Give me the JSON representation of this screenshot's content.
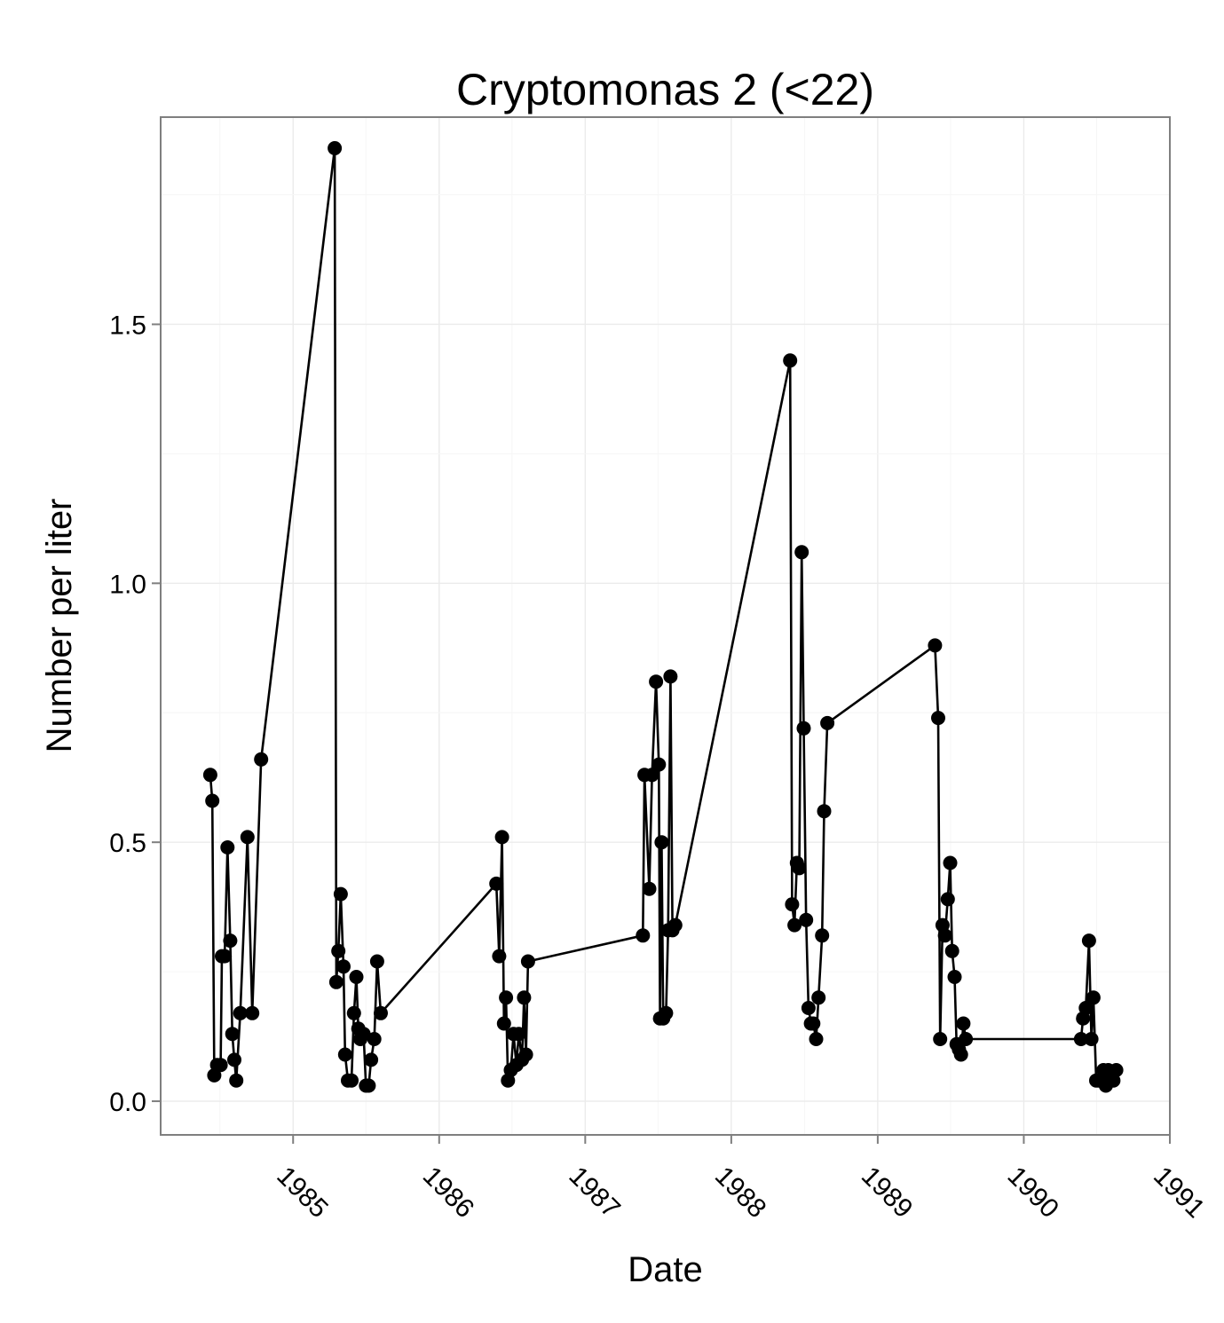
{
  "chart_data": {
    "type": "line",
    "title": "Cryptomonas 2 (<22)",
    "xlabel": "Date",
    "ylabel": "Number per liter",
    "x_ticks": [
      "1985",
      "1986",
      "1987",
      "1988",
      "1989",
      "1990",
      "1991"
    ],
    "y_ticks": [
      "0.0",
      "0.5",
      "1.0",
      "1.5"
    ],
    "xlim": [
      "1984-02-05",
      "1991-01-01"
    ],
    "ylim": [
      -0.065,
      1.9
    ],
    "grid": true,
    "marker": "circle",
    "colors": {
      "line": "#000000",
      "grid_major": "#ebebeb",
      "grid_minor": "#f6f6f6",
      "panel_border": "#7f7f7f"
    },
    "series": [
      {
        "points": [
          [
            "1984-06-08",
            0.63
          ],
          [
            "1984-06-13",
            0.58
          ],
          [
            "1984-06-18",
            0.05
          ],
          [
            "1984-06-25",
            0.07
          ],
          [
            "1984-07-04",
            0.07
          ],
          [
            "1984-07-07",
            0.28
          ],
          [
            "1984-07-14",
            0.28
          ],
          [
            "1984-07-21",
            0.49
          ],
          [
            "1984-07-28",
            0.31
          ],
          [
            "1984-08-02",
            0.13
          ],
          [
            "1984-08-07",
            0.08
          ],
          [
            "1984-08-12",
            0.04
          ],
          [
            "1984-08-22",
            0.17
          ],
          [
            "1984-09-09",
            0.51
          ],
          [
            "1984-09-21",
            0.17
          ],
          [
            "1984-10-13",
            0.66
          ],
          [
            "1985-04-15",
            1.84
          ],
          [
            "1985-04-19",
            0.23
          ],
          [
            "1985-04-24",
            0.29
          ],
          [
            "1985-04-30",
            0.4
          ],
          [
            "1985-05-07",
            0.26
          ],
          [
            "1985-05-11",
            0.09
          ],
          [
            "1985-05-18",
            0.04
          ],
          [
            "1985-05-27",
            0.04
          ],
          [
            "1985-06-02",
            0.17
          ],
          [
            "1985-06-08",
            0.24
          ],
          [
            "1985-06-13",
            0.14
          ],
          [
            "1985-06-18",
            0.12
          ],
          [
            "1985-06-26",
            0.13
          ],
          [
            "1985-07-02",
            0.03
          ],
          [
            "1985-07-09",
            0.03
          ],
          [
            "1985-07-15",
            0.08
          ],
          [
            "1985-07-23",
            0.12
          ],
          [
            "1985-07-30",
            0.27
          ],
          [
            "1985-08-08",
            0.17
          ],
          [
            "1986-05-24",
            0.42
          ],
          [
            "1986-05-31",
            0.28
          ],
          [
            "1986-06-07",
            0.51
          ],
          [
            "1986-06-12",
            0.15
          ],
          [
            "1986-06-17",
            0.2
          ],
          [
            "1986-06-22",
            0.04
          ],
          [
            "1986-06-29",
            0.06
          ],
          [
            "1986-07-06",
            0.13
          ],
          [
            "1986-07-13",
            0.07
          ],
          [
            "1986-07-19",
            0.13
          ],
          [
            "1986-07-27",
            0.08
          ],
          [
            "1986-08-01",
            0.2
          ],
          [
            "1986-08-06",
            0.09
          ],
          [
            "1986-08-11",
            0.27
          ],
          [
            "1987-05-25",
            0.32
          ],
          [
            "1987-05-29",
            0.63
          ],
          [
            "1987-06-10",
            0.41
          ],
          [
            "1987-06-17",
            0.63
          ],
          [
            "1987-06-27",
            0.81
          ],
          [
            "1987-07-04",
            0.65
          ],
          [
            "1987-07-07",
            0.16
          ],
          [
            "1987-07-11",
            0.5
          ],
          [
            "1987-07-15",
            0.16
          ],
          [
            "1987-07-22",
            0.17
          ],
          [
            "1987-07-27",
            0.33
          ],
          [
            "1987-08-02",
            0.82
          ],
          [
            "1987-08-07",
            0.33
          ],
          [
            "1987-08-14",
            0.34
          ],
          [
            "1988-05-27",
            1.43
          ],
          [
            "1988-06-01",
            0.38
          ],
          [
            "1988-06-07",
            0.34
          ],
          [
            "1988-06-13",
            0.46
          ],
          [
            "1988-06-19",
            0.45
          ],
          [
            "1988-06-25",
            1.06
          ],
          [
            "1988-06-30",
            0.72
          ],
          [
            "1988-07-06",
            0.35
          ],
          [
            "1988-07-12",
            0.18
          ],
          [
            "1988-07-18",
            0.15
          ],
          [
            "1988-07-24",
            0.15
          ],
          [
            "1988-07-31",
            0.12
          ],
          [
            "1988-08-06",
            0.2
          ],
          [
            "1988-08-15",
            0.32
          ],
          [
            "1988-08-20",
            0.56
          ],
          [
            "1988-08-28",
            0.73
          ],
          [
            "1989-05-24",
            0.88
          ],
          [
            "1989-06-01",
            0.74
          ],
          [
            "1989-06-06",
            0.12
          ],
          [
            "1989-06-12",
            0.34
          ],
          [
            "1989-06-18",
            0.32
          ],
          [
            "1989-06-25",
            0.39
          ],
          [
            "1989-07-01",
            0.46
          ],
          [
            "1989-07-06",
            0.29
          ],
          [
            "1989-07-12",
            0.24
          ],
          [
            "1989-07-17",
            0.11
          ],
          [
            "1989-07-23",
            0.1
          ],
          [
            "1989-07-28",
            0.09
          ],
          [
            "1989-08-03",
            0.15
          ],
          [
            "1989-08-09",
            0.12
          ],
          [
            "1990-05-24",
            0.12
          ],
          [
            "1990-05-29",
            0.16
          ],
          [
            "1990-06-05",
            0.18
          ],
          [
            "1990-06-13",
            0.31
          ],
          [
            "1990-06-19",
            0.12
          ],
          [
            "1990-06-24",
            0.2
          ],
          [
            "1990-07-01",
            0.04
          ],
          [
            "1990-07-07",
            0.04
          ],
          [
            "1990-07-13",
            0.04
          ],
          [
            "1990-07-19",
            0.06
          ],
          [
            "1990-07-25",
            0.03
          ],
          [
            "1990-07-31",
            0.06
          ],
          [
            "1990-08-07",
            0.05
          ],
          [
            "1990-08-13",
            0.04
          ],
          [
            "1990-08-20",
            0.06
          ]
        ]
      }
    ]
  }
}
